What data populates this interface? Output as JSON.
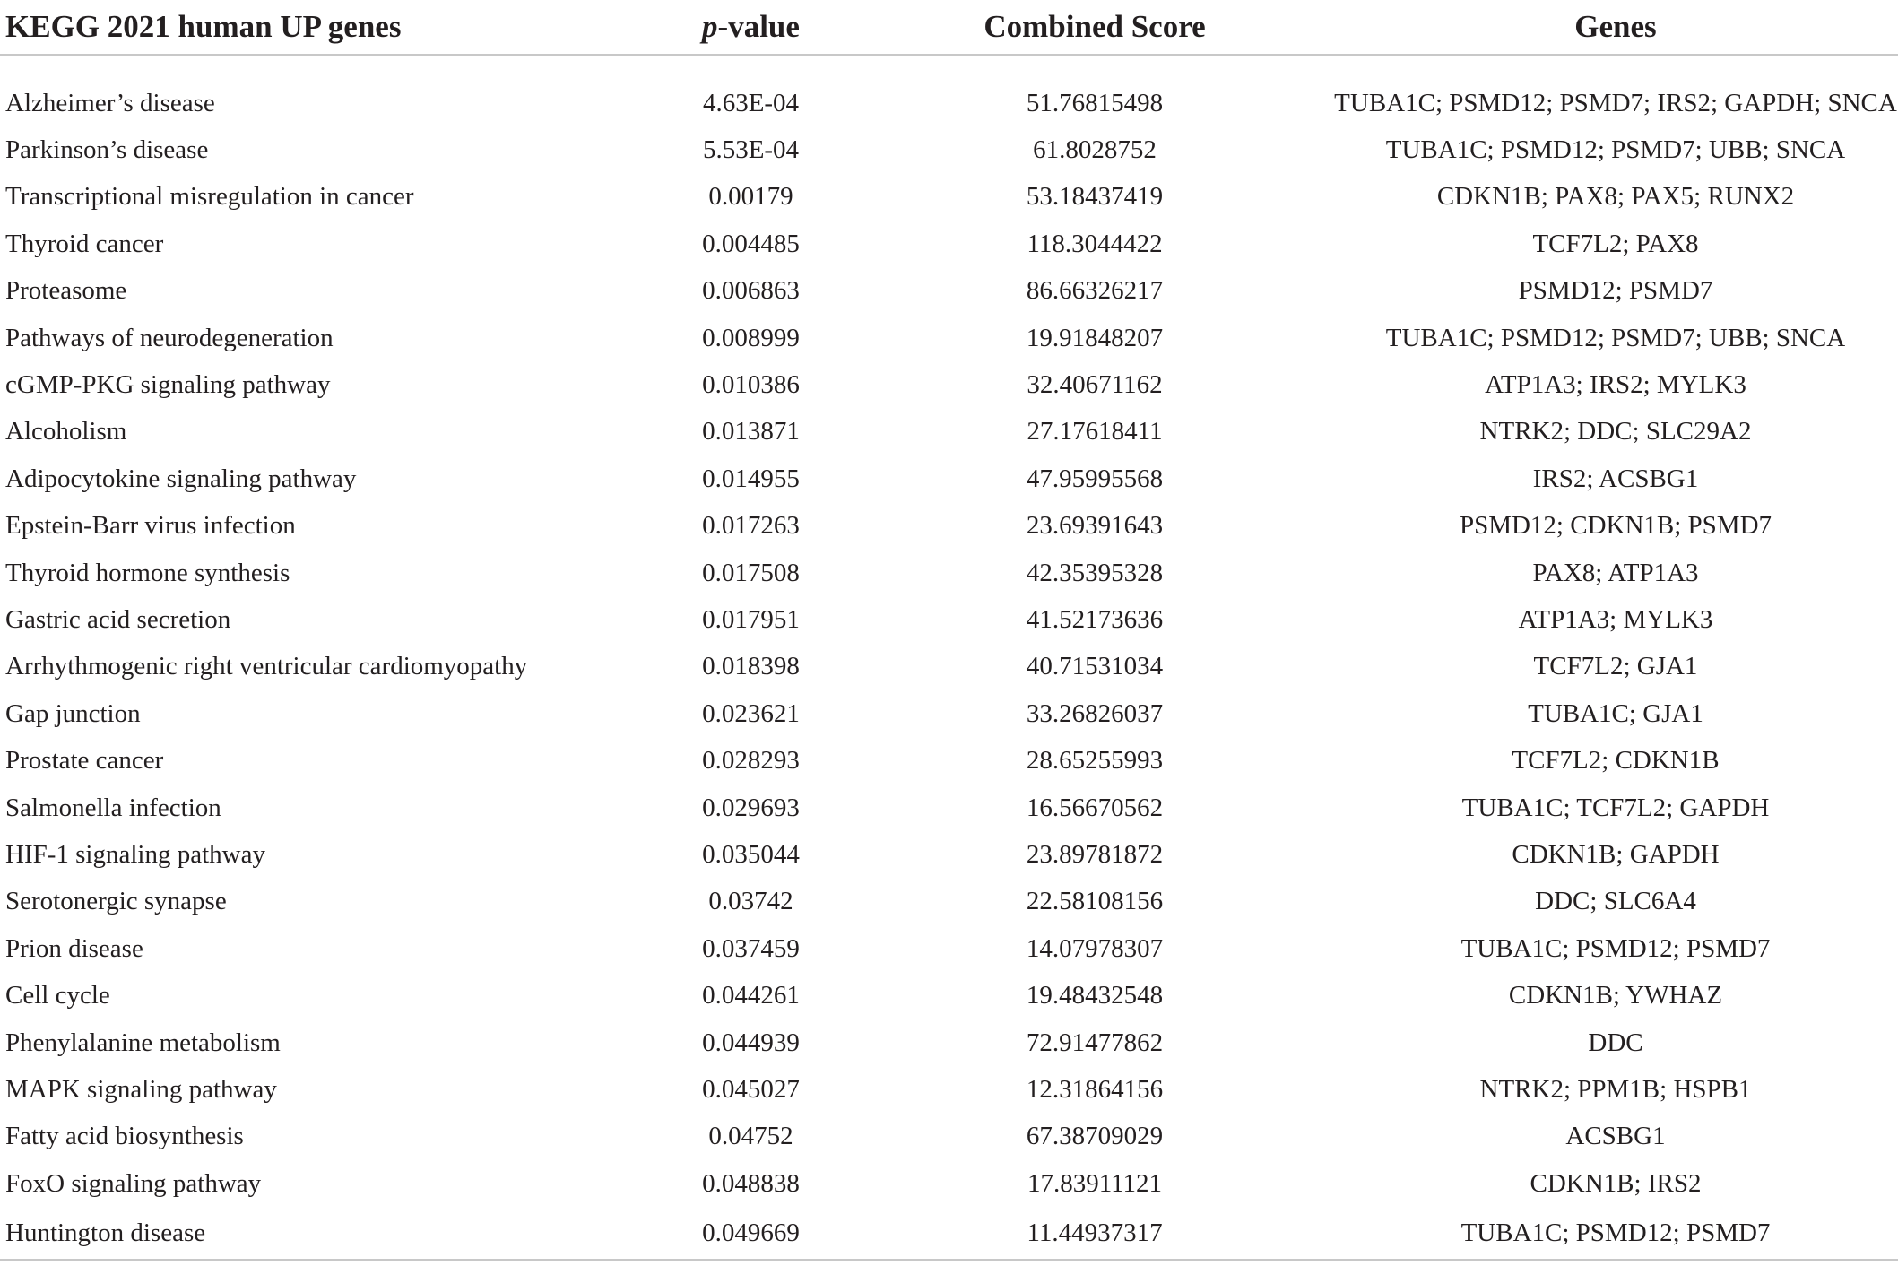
{
  "header": {
    "col1": "KEGG 2021 human UP genes",
    "col2_italic": "p",
    "col2_rest": "-value",
    "col3": "Combined Score",
    "col4": "Genes"
  },
  "rows": [
    {
      "pathway": "Alzheimer’s disease",
      "pvalue": "4.63E-04",
      "score": "51.76815498",
      "genes": "TUBA1C; PSMD12; PSMD7; IRS2; GAPDH; SNCA"
    },
    {
      "pathway": "Parkinson’s disease",
      "pvalue": "5.53E-04",
      "score": "61.8028752",
      "genes": "TUBA1C; PSMD12; PSMD7; UBB; SNCA"
    },
    {
      "pathway": "Transcriptional misregulation in cancer",
      "pvalue": "0.00179",
      "score": "53.18437419",
      "genes": "CDKN1B; PAX8; PAX5; RUNX2"
    },
    {
      "pathway": "Thyroid cancer",
      "pvalue": "0.004485",
      "score": "118.3044422",
      "genes": "TCF7L2; PAX8"
    },
    {
      "pathway": "Proteasome",
      "pvalue": "0.006863",
      "score": "86.66326217",
      "genes": "PSMD12; PSMD7"
    },
    {
      "pathway": "Pathways of neurodegeneration",
      "pvalue": "0.008999",
      "score": "19.91848207",
      "genes": "TUBA1C; PSMD12; PSMD7; UBB; SNCA"
    },
    {
      "pathway": "cGMP-PKG signaling pathway",
      "pvalue": "0.010386",
      "score": "32.40671162",
      "genes": "ATP1A3; IRS2; MYLK3"
    },
    {
      "pathway": "Alcoholism",
      "pvalue": "0.013871",
      "score": "27.17618411",
      "genes": "NTRK2; DDC; SLC29A2"
    },
    {
      "pathway": "Adipocytokine signaling pathway",
      "pvalue": "0.014955",
      "score": "47.95995568",
      "genes": "IRS2; ACSBG1"
    },
    {
      "pathway": "Epstein-Barr virus infection",
      "pvalue": "0.017263",
      "score": "23.69391643",
      "genes": "PSMD12; CDKN1B; PSMD7"
    },
    {
      "pathway": "Thyroid hormone synthesis",
      "pvalue": "0.017508",
      "score": "42.35395328",
      "genes": "PAX8; ATP1A3"
    },
    {
      "pathway": "Gastric acid secretion",
      "pvalue": "0.017951",
      "score": "41.52173636",
      "genes": "ATP1A3; MYLK3"
    },
    {
      "pathway": "Arrhythmogenic right ventricular cardiomyopathy",
      "pvalue": "0.018398",
      "score": "40.71531034",
      "genes": "TCF7L2; GJA1"
    },
    {
      "pathway": "Gap junction",
      "pvalue": "0.023621",
      "score": "33.26826037",
      "genes": "TUBA1C; GJA1"
    },
    {
      "pathway": "Prostate cancer",
      "pvalue": "0.028293",
      "score": "28.65255993",
      "genes": "TCF7L2; CDKN1B"
    },
    {
      "pathway": "Salmonella infection",
      "pvalue": "0.029693",
      "score": "16.56670562",
      "genes": "TUBA1C; TCF7L2; GAPDH"
    },
    {
      "pathway": "HIF-1 signaling pathway",
      "pvalue": "0.035044",
      "score": "23.89781872",
      "genes": "CDKN1B; GAPDH"
    },
    {
      "pathway": "Serotonergic synapse",
      "pvalue": "0.03742",
      "score": "22.58108156",
      "genes": "DDC; SLC6A4"
    },
    {
      "pathway": "Prion disease",
      "pvalue": "0.037459",
      "score": "14.07978307",
      "genes": "TUBA1C; PSMD12; PSMD7"
    },
    {
      "pathway": "Cell cycle",
      "pvalue": "0.044261",
      "score": "19.48432548",
      "genes": "CDKN1B; YWHAZ"
    },
    {
      "pathway": "Phenylalanine metabolism",
      "pvalue": "0.044939",
      "score": "72.91477862",
      "genes": "DDC"
    },
    {
      "pathway": "MAPK signaling pathway",
      "pvalue": "0.045027",
      "score": "12.31864156",
      "genes": "NTRK2; PPM1B; HSPB1"
    },
    {
      "pathway": "Fatty acid biosynthesis",
      "pvalue": "0.04752",
      "score": "67.38709029",
      "genes": "ACSBG1"
    },
    {
      "pathway": "FoxO signaling pathway",
      "pvalue": "0.048838",
      "score": "17.83911121",
      "genes": "CDKN1B; IRS2"
    },
    {
      "pathway": "Huntington disease",
      "pvalue": "0.049669",
      "score": "11.44937317",
      "genes": "TUBA1C; PSMD12; PSMD7"
    }
  ]
}
